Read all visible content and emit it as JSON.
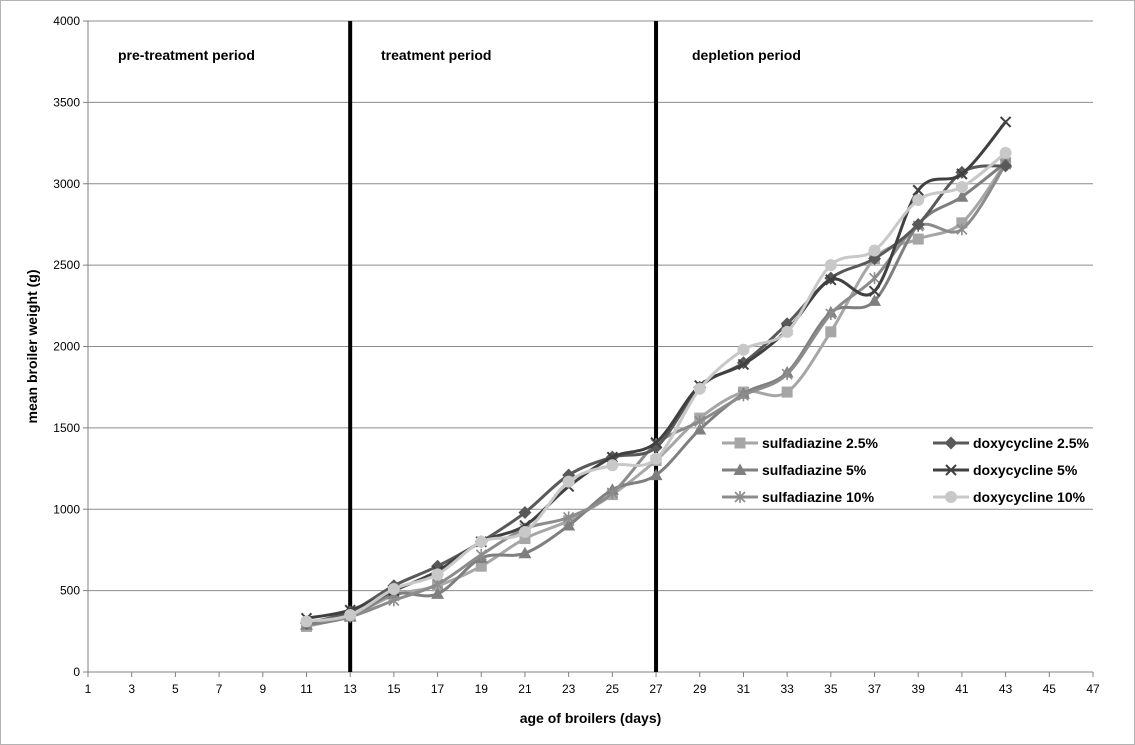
{
  "chart_data": {
    "type": "line",
    "title": "",
    "xlabel": "age of broilers (days)",
    "ylabel": "mean broiler weight (g)",
    "xlim": [
      1,
      47
    ],
    "ylim": [
      0,
      4000
    ],
    "x_ticks": [
      1,
      3,
      5,
      7,
      9,
      11,
      13,
      15,
      17,
      19,
      21,
      23,
      25,
      27,
      29,
      31,
      33,
      35,
      37,
      39,
      41,
      43,
      45,
      47
    ],
    "y_ticks": [
      0,
      500,
      1000,
      1500,
      2000,
      2500,
      3000,
      3500,
      4000
    ],
    "grid": "horizontal",
    "legend_position": "right",
    "period_dividers": [
      13,
      27
    ],
    "period_labels": [
      "pre-treatment period",
      "treatment period",
      "depletion period"
    ],
    "x": [
      11,
      13,
      15,
      17,
      19,
      21,
      23,
      25,
      27,
      29,
      31,
      33,
      35,
      37,
      39,
      41,
      43
    ],
    "series": [
      {
        "name": "sulfadiazine 2.5%",
        "marker": "square",
        "color": "#a6a6a6",
        "values": [
          280,
          345,
          470,
          530,
          650,
          820,
          930,
          1090,
          1300,
          1560,
          1720,
          1720,
          2090,
          2540,
          2660,
          2760,
          3130
        ]
      },
      {
        "name": "sulfadiazine 5%",
        "marker": "triangle",
        "color": "#7f7f7f",
        "values": [
          290,
          340,
          480,
          480,
          700,
          730,
          900,
          1120,
          1210,
          1490,
          1710,
          1840,
          2210,
          2280,
          2750,
          2920,
          3130
        ]
      },
      {
        "name": "sulfadiazine 10%",
        "marker": "asterisk",
        "color": "#8c8c8c",
        "values": [
          300,
          340,
          440,
          540,
          720,
          880,
          950,
          1100,
          1400,
          1540,
          1700,
          1830,
          2200,
          2420,
          2740,
          2720,
          3120
        ]
      },
      {
        "name": "doxycycline 2.5%",
        "marker": "diamond",
        "color": "#595959",
        "values": [
          300,
          370,
          530,
          650,
          800,
          980,
          1210,
          1320,
          1380,
          1750,
          1900,
          2140,
          2420,
          2540,
          2750,
          3070,
          3110
        ]
      },
      {
        "name": "doxycycline 5%",
        "marker": "x",
        "color": "#404040",
        "values": [
          330,
          380,
          500,
          620,
          800,
          900,
          1140,
          1320,
          1410,
          1760,
          1890,
          2100,
          2410,
          2340,
          2960,
          3060,
          3380
        ]
      },
      {
        "name": "doxycycline 10%",
        "marker": "circle",
        "color": "#c8c8c8",
        "values": [
          310,
          350,
          510,
          600,
          800,
          860,
          1170,
          1270,
          1310,
          1740,
          1980,
          2090,
          2500,
          2590,
          2900,
          2980,
          3190
        ]
      }
    ]
  }
}
